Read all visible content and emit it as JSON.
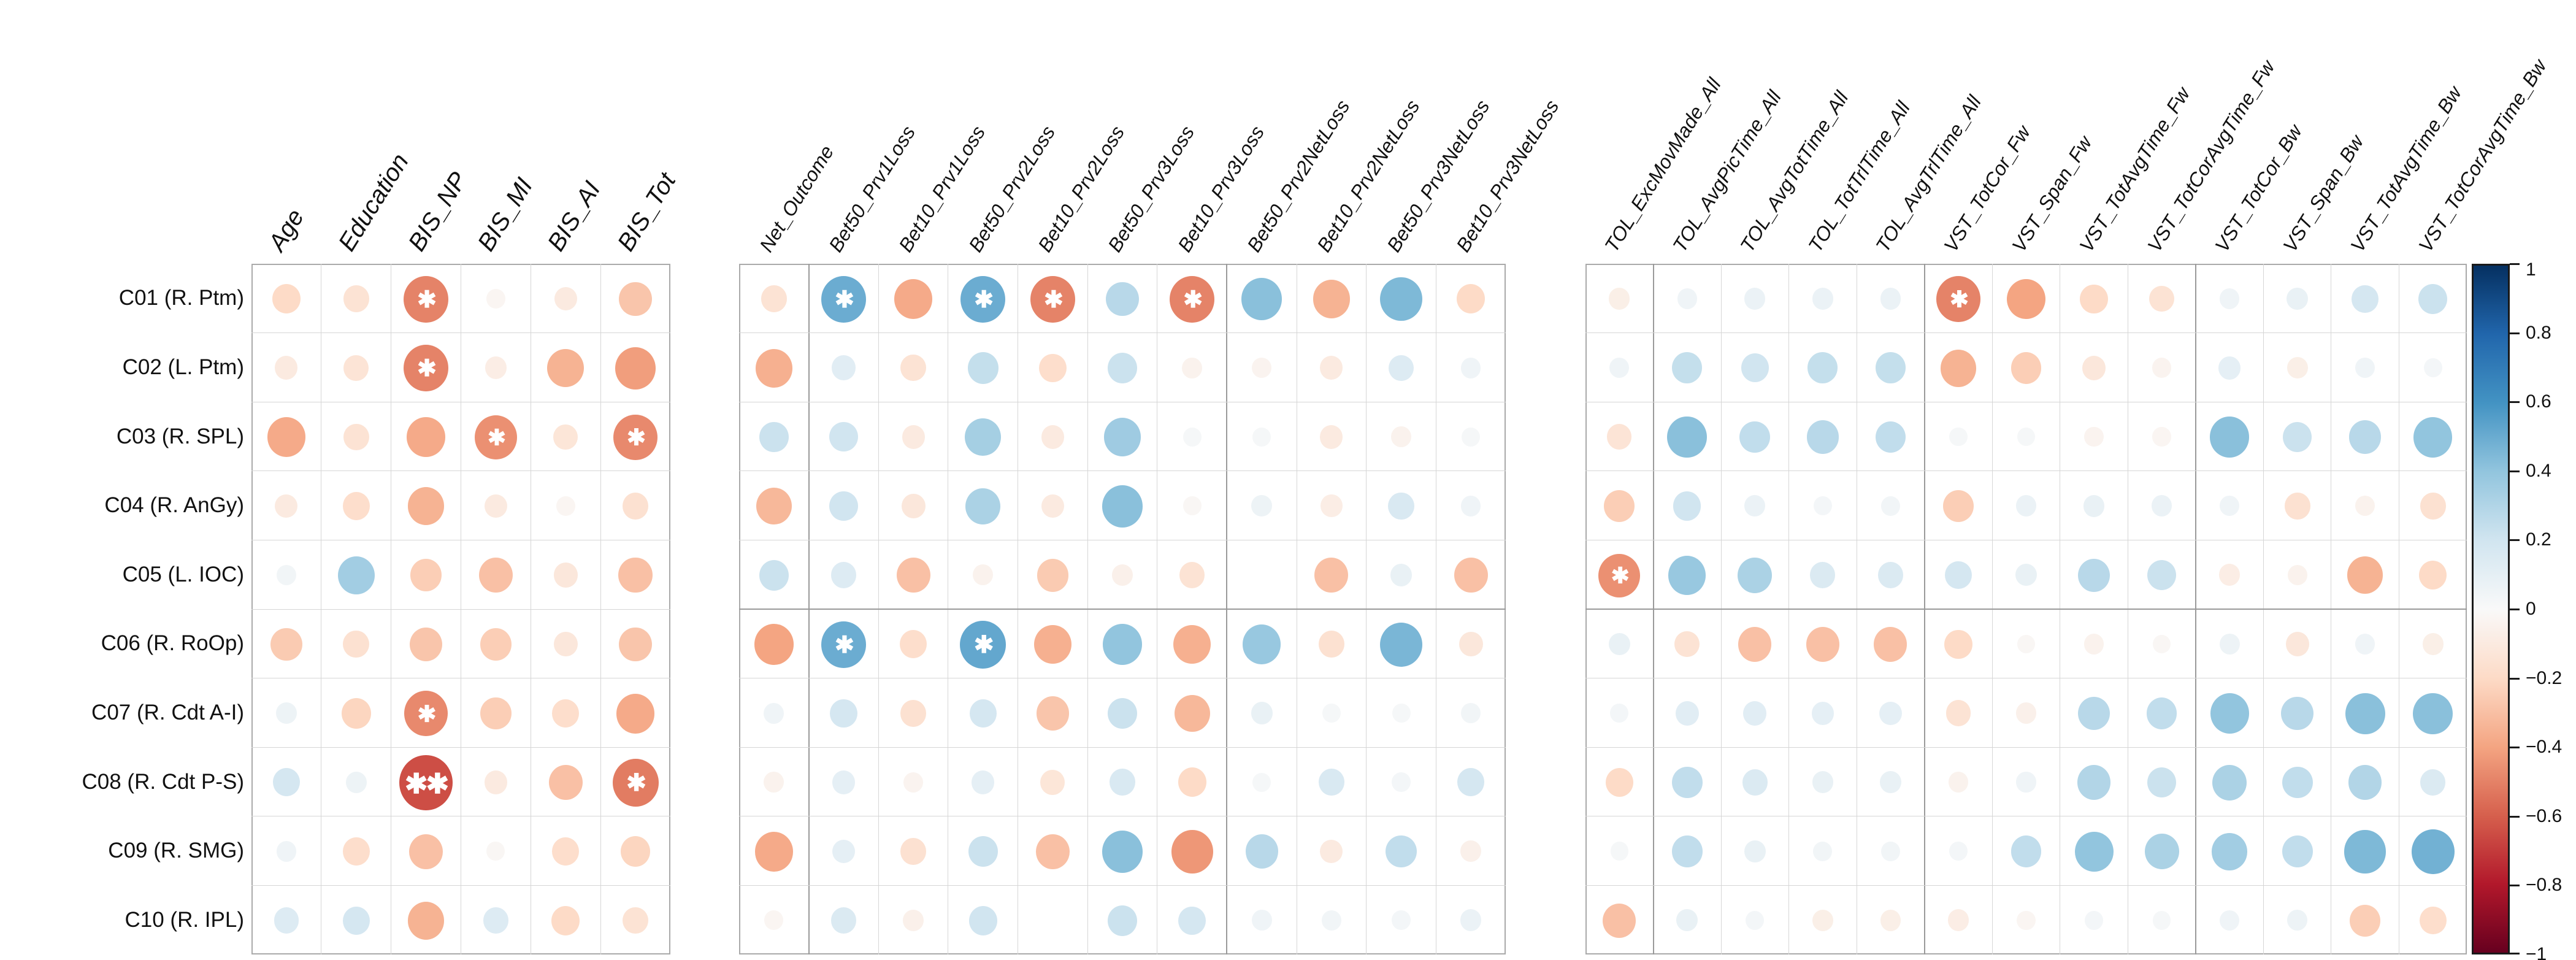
{
  "figure_title": "",
  "chart_data": {
    "type": "heatmap",
    "subtype": "bubble-correlation-matrix",
    "description": "Three-panel correlation bubble matrix; circle size and color encode correlation r (blue positive, red/orange negative); asterisks mark significance.",
    "rows": [
      "C01 (R. Ptm)",
      "C02 (L. Ptm)",
      "C03 (R. SPL)",
      "C04 (R. AnGy)",
      "C05 (L. IOC)",
      "C06 (R. RoOp)",
      "C07 (R. Cdt A-I)",
      "C08 (R. Cdt P-S)",
      "C09 (R. SMG)",
      "C10 (R. IPL)"
    ],
    "row_group_separators_after": [
      4,
      9
    ],
    "panels": [
      {
        "name": "demographics-bis",
        "columns": [
          "Age",
          "Education",
          "BIS_NP",
          "BIS_MI",
          "BIS_AI",
          "BIS_Tot"
        ],
        "col_group_separators_after": [],
        "values": [
          [
            -0.2,
            -0.15,
            -0.5,
            -0.03,
            -0.1,
            -0.28
          ],
          [
            -0.1,
            -0.14,
            -0.5,
            -0.08,
            -0.35,
            -0.42
          ],
          [
            -0.38,
            -0.15,
            -0.38,
            -0.46,
            -0.13,
            -0.48
          ],
          [
            -0.1,
            -0.18,
            -0.35,
            -0.1,
            -0.03,
            -0.16
          ],
          [
            0.04,
            0.35,
            -0.25,
            -0.3,
            -0.12,
            -0.3
          ],
          [
            -0.26,
            -0.16,
            -0.28,
            -0.25,
            -0.12,
            -0.28
          ],
          [
            0.06,
            -0.22,
            -0.48,
            -0.25,
            -0.18,
            -0.38
          ],
          [
            0.18,
            0.06,
            -0.65,
            -0.1,
            -0.3,
            -0.52
          ],
          [
            0.05,
            -0.18,
            -0.3,
            -0.02,
            -0.18,
            -0.22
          ],
          [
            0.14,
            0.18,
            -0.35,
            0.14,
            -0.2,
            -0.15
          ]
        ],
        "stars": [
          [
            "",
            "",
            "*",
            "",
            "",
            ""
          ],
          [
            "",
            "",
            "*",
            "",
            "",
            ""
          ],
          [
            "",
            "",
            "",
            "*",
            "",
            "*"
          ],
          [
            "",
            "",
            "",
            "",
            "",
            ""
          ],
          [
            "",
            "",
            "",
            "",
            "",
            ""
          ],
          [
            "",
            "",
            "",
            "",
            "",
            ""
          ],
          [
            "",
            "",
            "*",
            "",
            "",
            ""
          ],
          [
            "",
            "",
            "**",
            "",
            "",
            "*"
          ],
          [
            "",
            "",
            "",
            "",
            "",
            ""
          ],
          [
            "",
            "",
            "",
            "",
            "",
            ""
          ]
        ]
      },
      {
        "name": "gambling-task",
        "columns": [
          "Net_Outcome",
          "Bet50_Prv1Loss",
          "Bet10_Prv1Loss",
          "Bet50_Prv2Loss",
          "Bet10_Prv2Loss",
          "Bet50_Prv3Loss",
          "Bet10_Prv3Loss",
          "Bet50_Prv2NetLoss",
          "Bet10_Prv2NetLoss",
          "Bet50_Prv3NetLoss",
          "Bet10_Prv3NetLoss"
        ],
        "col_group_separators_after": [
          0,
          6
        ],
        "values": [
          [
            -0.15,
            0.5,
            -0.38,
            0.5,
            -0.5,
            0.28,
            -0.5,
            0.42,
            -0.35,
            0.45,
            -0.2
          ],
          [
            -0.36,
            0.12,
            -0.15,
            0.24,
            -0.18,
            0.22,
            -0.05,
            -0.04,
            -0.1,
            0.14,
            0.05
          ],
          [
            0.22,
            0.2,
            -0.1,
            0.34,
            -0.1,
            0.36,
            0.02,
            0.02,
            -0.1,
            -0.05,
            0.02
          ],
          [
            -0.33,
            0.2,
            -0.12,
            0.32,
            -0.1,
            0.42,
            -0.02,
            0.06,
            -0.08,
            0.16,
            0.05
          ],
          [
            0.22,
            0.14,
            -0.3,
            -0.05,
            -0.26,
            -0.06,
            -0.15,
            0.0,
            -0.3,
            0.08,
            -0.3
          ],
          [
            -0.4,
            0.5,
            -0.18,
            0.52,
            -0.36,
            0.4,
            -0.36,
            0.38,
            -0.16,
            0.46,
            -0.12
          ],
          [
            0.05,
            0.18,
            -0.16,
            0.18,
            -0.28,
            0.22,
            -0.33,
            0.08,
            0.02,
            0.02,
            0.04
          ],
          [
            -0.05,
            0.1,
            -0.04,
            0.1,
            -0.13,
            0.16,
            -0.2,
            0.02,
            0.16,
            0.03,
            0.18
          ],
          [
            -0.38,
            0.1,
            -0.16,
            0.22,
            -0.3,
            0.42,
            -0.44,
            0.28,
            -0.1,
            0.25,
            -0.06
          ],
          [
            -0.03,
            0.15,
            -0.06,
            0.2,
            0.0,
            0.22,
            0.18,
            0.05,
            0.04,
            0.03,
            0.07
          ]
        ],
        "stars": [
          [
            "",
            "*",
            "",
            "*",
            "*",
            "",
            "*",
            "",
            "",
            "",
            ""
          ],
          [
            "",
            "",
            "",
            "",
            "",
            "",
            "",
            "",
            "",
            "",
            ""
          ],
          [
            "",
            "",
            "",
            "",
            "",
            "",
            "",
            "",
            "",
            "",
            ""
          ],
          [
            "",
            "",
            "",
            "",
            "",
            "",
            "",
            "",
            "",
            "",
            ""
          ],
          [
            "",
            "",
            "",
            "",
            "",
            "",
            "",
            "",
            "",
            "",
            ""
          ],
          [
            "",
            "*",
            "",
            "*",
            "",
            "",
            "",
            "",
            "",
            "",
            ""
          ],
          [
            "",
            "",
            "",
            "",
            "",
            "",
            "",
            "",
            "",
            "",
            ""
          ],
          [
            "",
            "",
            "",
            "",
            "",
            "",
            "",
            "",
            "",
            "",
            ""
          ],
          [
            "",
            "",
            "",
            "",
            "",
            "",
            "",
            "",
            "",
            "",
            ""
          ],
          [
            "",
            "",
            "",
            "",
            "",
            "",
            "",
            "",
            "",
            "",
            ""
          ]
        ]
      },
      {
        "name": "tol-vst",
        "columns": [
          "TOL_ExcMovMade_All",
          "TOL_AvgPicTime_All",
          "TOL_AvgTotTime_All",
          "TOL_TotTrlTime_All",
          "TOL_AvgTrlTime_All",
          "VST_TotCor_Fw",
          "VST_Span_Fw",
          "VST_TotAvgTime_Fw",
          "VST_TotCorAvgTime_Fw",
          "VST_TotCor_Bw",
          "VST_Span_Bw",
          "VST_TotAvgTime_Bw",
          "VST_TotCorAvgTime_Bw"
        ],
        "col_group_separators_after": [
          0,
          4,
          8
        ],
        "values": [
          [
            -0.07,
            0.05,
            0.07,
            0.07,
            0.07,
            -0.5,
            -0.4,
            -0.2,
            -0.15,
            0.05,
            0.08,
            0.18,
            0.22
          ],
          [
            0.05,
            0.24,
            0.2,
            0.24,
            0.24,
            -0.35,
            -0.25,
            -0.12,
            -0.04,
            0.1,
            -0.07,
            0.05,
            0.03
          ],
          [
            -0.14,
            0.42,
            0.25,
            0.28,
            0.25,
            0.02,
            0.02,
            -0.04,
            -0.03,
            0.42,
            0.22,
            0.28,
            0.4
          ],
          [
            -0.25,
            0.2,
            0.07,
            0.03,
            0.04,
            -0.25,
            0.07,
            0.08,
            0.07,
            0.05,
            -0.16,
            -0.05,
            -0.16
          ],
          [
            -0.46,
            0.38,
            0.32,
            0.15,
            0.15,
            0.18,
            0.08,
            0.28,
            0.22,
            -0.08,
            -0.05,
            -0.35,
            -0.2
          ],
          [
            0.08,
            -0.15,
            -0.3,
            -0.3,
            -0.3,
            -0.2,
            -0.02,
            -0.05,
            -0.02,
            0.06,
            -0.12,
            0.05,
            -0.07
          ],
          [
            0.03,
            0.12,
            0.12,
            0.1,
            0.1,
            -0.15,
            -0.06,
            0.28,
            0.25,
            0.4,
            0.28,
            0.42,
            0.42
          ],
          [
            -0.2,
            0.25,
            0.15,
            0.08,
            0.08,
            -0.05,
            0.05,
            0.3,
            0.22,
            0.32,
            0.25,
            0.3,
            0.15
          ],
          [
            0.02,
            0.25,
            0.08,
            0.04,
            0.04,
            0.03,
            0.25,
            0.4,
            0.32,
            0.35,
            0.25,
            0.45,
            0.48
          ],
          [
            -0.3,
            0.08,
            0.03,
            -0.07,
            -0.07,
            -0.08,
            -0.03,
            0.03,
            0.02,
            0.05,
            0.06,
            -0.25,
            -0.18
          ]
        ],
        "stars": [
          [
            "",
            "",
            "",
            "",
            "",
            "*",
            "",
            "",
            "",
            "",
            "",
            "",
            ""
          ],
          [
            "",
            "",
            "",
            "",
            "",
            "",
            "",
            "",
            "",
            "",
            "",
            "",
            ""
          ],
          [
            "",
            "",
            "",
            "",
            "",
            "",
            "",
            "",
            "",
            "",
            "",
            "",
            ""
          ],
          [
            "",
            "",
            "",
            "",
            "",
            "",
            "",
            "",
            "",
            "",
            "",
            "",
            ""
          ],
          [
            "*",
            "",
            "",
            "",
            "",
            "",
            "",
            "",
            "",
            "",
            "",
            "",
            ""
          ],
          [
            "",
            "",
            "",
            "",
            "",
            "",
            "",
            "",
            "",
            "",
            "",
            "",
            ""
          ],
          [
            "",
            "",
            "",
            "",
            "",
            "",
            "",
            "",
            "",
            "",
            "",
            "",
            ""
          ],
          [
            "",
            "",
            "",
            "",
            "",
            "",
            "",
            "",
            "",
            "",
            "",
            "",
            ""
          ],
          [
            "",
            "",
            "",
            "",
            "",
            "",
            "",
            "",
            "",
            "",
            "",
            "",
            ""
          ],
          [
            "",
            "",
            "",
            "",
            "",
            "",
            "",
            "",
            "",
            "",
            "",
            "",
            ""
          ]
        ]
      }
    ],
    "colorbar": {
      "tick_labels": [
        "1",
        "0.8",
        "0.6",
        "0.4",
        "0.2",
        "0",
        "−0.2",
        "−0.4",
        "−0.6",
        "−0.8",
        "−1"
      ],
      "min": -1,
      "max": 1,
      "palette_low_to_high": [
        "#67001F",
        "#B2182B",
        "#D6604D",
        "#F4A582",
        "#FDDBC7",
        "#F9F9F9",
        "#D1E5F0",
        "#92C5DE",
        "#4393C3",
        "#2166AC",
        "#053061"
      ]
    },
    "legend_position": "right",
    "grid": true
  }
}
